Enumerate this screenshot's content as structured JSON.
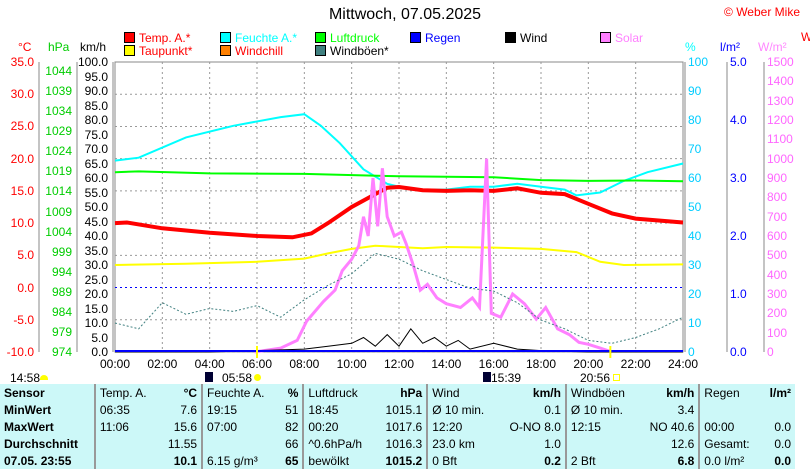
{
  "header": {
    "title": "Mittwoch, 07.05.2025",
    "copyright": "© Weber Mike",
    "edge_letter": "W"
  },
  "units": {
    "temp": "°C",
    "pressure": "hPa",
    "speed": "km/h",
    "humidity": "%",
    "rain": "l/m²",
    "solar": "W/m²"
  },
  "legend": [
    {
      "label": "Temp. A.*",
      "color": "#ff0000"
    },
    {
      "label": "Feuchte A.*",
      "color": "#00ffff"
    },
    {
      "label": "Luftdruck",
      "color": "#00ff00"
    },
    {
      "label": "Regen",
      "color": "#0000ff"
    },
    {
      "label": "Wind",
      "color": "#000000"
    },
    {
      "label": "Solar",
      "color": "#ff80ff"
    },
    {
      "label": "Taupunkt*",
      "color": "#ffff00"
    },
    {
      "label": "Windchill",
      "color": "#ff8000"
    },
    {
      "label": "Windböen*",
      "color": "#408080"
    }
  ],
  "legend_text_colors": [
    "#ff0000",
    "#00ffff",
    "#00ff00",
    "#0000ff",
    "#000000",
    "#ff80ff",
    "#ff0000",
    "#ff0000",
    "#000000"
  ],
  "events": {
    "moonrise": "14:58",
    "sunrise": "05:58",
    "moonset": "15:39",
    "sunset": "20:56"
  },
  "chart_data": {
    "type": "line",
    "x_label": "time",
    "x_ticks": [
      "00:00",
      "02:00",
      "04:00",
      "06:00",
      "08:00",
      "10:00",
      "12:00",
      "14:00",
      "16:00",
      "18:00",
      "20:00",
      "22:00",
      "24:00"
    ],
    "axes": {
      "temp": {
        "range": [
          -10,
          35
        ],
        "ticks": [
          "35.0",
          "30.0",
          "25.0",
          "20.0",
          "15.0",
          "10.0",
          "5.0",
          "0.0",
          "-5.0",
          "-10.0"
        ]
      },
      "pressure": {
        "range": [
          974,
          1044
        ],
        "ticks": [
          "1044",
          "1039",
          "1034",
          "1029",
          "1024",
          "1019",
          "1014",
          "1009",
          "1004",
          "999",
          "994",
          "989",
          "984",
          "979",
          "974"
        ]
      },
      "speed": {
        "range": [
          0,
          100
        ],
        "ticks": [
          "100.0",
          "95.0",
          "90.0",
          "85.0",
          "80.0",
          "75.0",
          "70.0",
          "65.0",
          "60.0",
          "55.0",
          "50.0",
          "45.0",
          "40.0",
          "35.0",
          "30.0",
          "25.0",
          "20.0",
          "15.0",
          "10.0",
          "5.0",
          "0.0"
        ]
      },
      "humidity": {
        "range": [
          0,
          100
        ],
        "ticks": [
          "100",
          "90",
          "80",
          "70",
          "60",
          "50",
          "40",
          "30",
          "20",
          "10",
          "0"
        ]
      },
      "rain": {
        "range": [
          0,
          5
        ],
        "ticks": [
          "5.0",
          "4.0",
          "3.0",
          "2.0",
          "1.0",
          "0.0"
        ]
      },
      "solar": {
        "range": [
          0,
          1500
        ],
        "ticks": [
          "1500",
          "1400",
          "1300",
          "1200",
          "1100",
          "1000",
          "900",
          "800",
          "700",
          "600",
          "500",
          "400",
          "300",
          "200",
          "100",
          "0"
        ]
      }
    },
    "series": [
      {
        "name": "Feuchte A.",
        "axis": "humidity",
        "color": "#00ffff",
        "width": 2,
        "points": [
          [
            0,
            66
          ],
          [
            1,
            67
          ],
          [
            3,
            74
          ],
          [
            5,
            78
          ],
          [
            7,
            81
          ],
          [
            8,
            82
          ],
          [
            8.7,
            78
          ],
          [
            9.5,
            72
          ],
          [
            10.5,
            63
          ],
          [
            11.5,
            58
          ],
          [
            12.5,
            56
          ],
          [
            14,
            56
          ],
          [
            15,
            57
          ],
          [
            16,
            57
          ],
          [
            17,
            58
          ],
          [
            18,
            57
          ],
          [
            19,
            56
          ],
          [
            19.5,
            54
          ],
          [
            20.5,
            55
          ],
          [
            21.5,
            59
          ],
          [
            22.5,
            62
          ],
          [
            24,
            65
          ]
        ]
      },
      {
        "name": "Luftdruck",
        "axis": "pressure",
        "color": "#00ff00",
        "width": 2,
        "points": [
          [
            0,
            1017.4
          ],
          [
            1,
            1017.6
          ],
          [
            4,
            1017.1
          ],
          [
            8,
            1017.0
          ],
          [
            12,
            1016.4
          ],
          [
            16,
            1016.2
          ],
          [
            18,
            1015.5
          ],
          [
            20,
            1015.3
          ],
          [
            22,
            1015.4
          ],
          [
            24,
            1015.2
          ]
        ]
      },
      {
        "name": "Taupunkt",
        "axis": "temp",
        "color": "#ffff00",
        "width": 2,
        "points": [
          [
            0,
            3.5
          ],
          [
            3,
            3.7
          ],
          [
            6,
            4
          ],
          [
            8,
            4.5
          ],
          [
            9,
            5.3
          ],
          [
            10,
            6
          ],
          [
            11,
            6.5
          ],
          [
            12,
            6.3
          ],
          [
            13,
            6.1
          ],
          [
            14,
            6.3
          ],
          [
            16,
            6.2
          ],
          [
            18,
            6
          ],
          [
            19.5,
            5.5
          ],
          [
            20.5,
            4
          ],
          [
            21.5,
            3.5
          ],
          [
            24,
            3.6
          ]
        ]
      },
      {
        "name": "Temp. A.",
        "axis": "temp",
        "color": "#ff0000",
        "width": 4,
        "points": [
          [
            0,
            10
          ],
          [
            0.5,
            10.1
          ],
          [
            2,
            9.2
          ],
          [
            4,
            8.5
          ],
          [
            6,
            8.0
          ],
          [
            7.5,
            7.8
          ],
          [
            8.3,
            8.4
          ],
          [
            9,
            10
          ],
          [
            10,
            12.5
          ],
          [
            11,
            14.5
          ],
          [
            11.5,
            15.5
          ],
          [
            12,
            15.6
          ],
          [
            13,
            15.1
          ],
          [
            14,
            15
          ],
          [
            15,
            15.1
          ],
          [
            16,
            15
          ],
          [
            17,
            15.4
          ],
          [
            18,
            14.7
          ],
          [
            19,
            14.5
          ],
          [
            20,
            13
          ],
          [
            21,
            11.5
          ],
          [
            22,
            10.7
          ],
          [
            24,
            10.1
          ]
        ]
      },
      {
        "name": "Solar",
        "axis": "solar",
        "color": "#ff80ff",
        "width": 3,
        "points": [
          [
            5.9,
            0
          ],
          [
            7,
            20
          ],
          [
            7.7,
            60
          ],
          [
            8.1,
            160
          ],
          [
            8.8,
            260
          ],
          [
            9.3,
            320
          ],
          [
            9.6,
            420
          ],
          [
            10,
            480
          ],
          [
            10.3,
            550
          ],
          [
            10.5,
            700
          ],
          [
            10.7,
            600
          ],
          [
            10.9,
            900
          ],
          [
            11.1,
            650
          ],
          [
            11.3,
            950
          ],
          [
            11.5,
            700
          ],
          [
            11.8,
            600
          ],
          [
            12.1,
            620
          ],
          [
            12.3,
            560
          ],
          [
            12.6,
            450
          ],
          [
            12.9,
            320
          ],
          [
            13.2,
            350
          ],
          [
            13.6,
            280
          ],
          [
            14,
            250
          ],
          [
            14.6,
            230
          ],
          [
            15.1,
            280
          ],
          [
            15.4,
            230
          ],
          [
            15.7,
            1000
          ],
          [
            15.9,
            200
          ],
          [
            16.3,
            180
          ],
          [
            16.8,
            300
          ],
          [
            17.3,
            250
          ],
          [
            17.8,
            170
          ],
          [
            18.2,
            230
          ],
          [
            18.7,
            120
          ],
          [
            19.2,
            90
          ],
          [
            19.6,
            50
          ],
          [
            20,
            40
          ],
          [
            20.5,
            20
          ],
          [
            21,
            0
          ]
        ]
      },
      {
        "name": "Windböen",
        "axis": "speed",
        "color": "#408080",
        "width": 1,
        "dash": "2,2",
        "points": [
          [
            0,
            10
          ],
          [
            1,
            8
          ],
          [
            2,
            17
          ],
          [
            3,
            13
          ],
          [
            4,
            15
          ],
          [
            5,
            14
          ],
          [
            6,
            16
          ],
          [
            7,
            12
          ],
          [
            8,
            18
          ],
          [
            9,
            23
          ],
          [
            10,
            27
          ],
          [
            11,
            34
          ],
          [
            12,
            32
          ],
          [
            13,
            28
          ],
          [
            14,
            25
          ],
          [
            15,
            22
          ],
          [
            16,
            21
          ],
          [
            17,
            17
          ],
          [
            18,
            11
          ],
          [
            19,
            8
          ],
          [
            20,
            4
          ],
          [
            21,
            3
          ],
          [
            22,
            5
          ],
          [
            23,
            8
          ],
          [
            24,
            12
          ]
        ]
      },
      {
        "name": "Wind",
        "axis": "speed",
        "color": "#000000",
        "width": 1,
        "points": [
          [
            0,
            0
          ],
          [
            4,
            0
          ],
          [
            6,
            0.5
          ],
          [
            8,
            1
          ],
          [
            9,
            2
          ],
          [
            10,
            3
          ],
          [
            10.5,
            5
          ],
          [
            11,
            2
          ],
          [
            11.5,
            6
          ],
          [
            12,
            2
          ],
          [
            12.5,
            8
          ],
          [
            13,
            3
          ],
          [
            13.5,
            5
          ],
          [
            14,
            2
          ],
          [
            14.5,
            4
          ],
          [
            15,
            1
          ],
          [
            16,
            3
          ],
          [
            17,
            1
          ],
          [
            18,
            0.5
          ],
          [
            20,
            0
          ],
          [
            24,
            0
          ]
        ]
      }
    ]
  },
  "table": {
    "headers": [
      "Sensor",
      "Temp. A.",
      "°C",
      "Feuchte A.",
      "%",
      "Luftdruck",
      "hPa",
      "Wind",
      "km/h",
      "Windböen",
      "km/h",
      "Regen",
      "l/m²"
    ],
    "rows": [
      [
        "MinWert",
        "06:35",
        "7.6",
        "19:15",
        "51",
        "18:45",
        "1015.1",
        "Ø 10 min.",
        "0.1",
        "Ø 10 min.",
        "3.4",
        "",
        ""
      ],
      [
        "MaxWert",
        "11:06",
        "15.6",
        "07:00",
        "82",
        "00:20",
        "1017.6",
        "12:20",
        "O-NO 8.0",
        "12:15",
        "NO 40.6",
        "00:00",
        "0.0"
      ],
      [
        "Durchschnitt",
        "",
        "11.55",
        "",
        "66",
        "^0.6hPa/h",
        "1016.3",
        "23.0 km",
        "1.0",
        "",
        "12.6",
        "Gesamt:",
        "0.0"
      ],
      [
        "07.05. 23:55",
        "",
        "10.1",
        "6.15 g/m³",
        "65",
        "bewölkt",
        "1015.2",
        "0 Bft",
        "0.2",
        "2 Bft",
        "6.8",
        "0.0 l/m²",
        "0.0"
      ]
    ]
  }
}
